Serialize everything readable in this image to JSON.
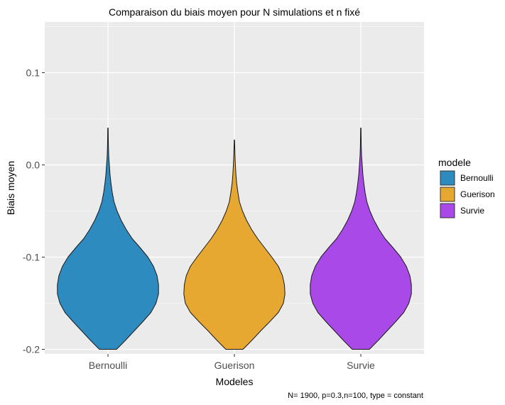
{
  "chart_data": {
    "type": "violin",
    "title": "Comparaison du biais moyen pour N simulations et n fixé",
    "xlabel": "Modeles",
    "ylabel": "Biais moyen",
    "caption": "N= 1900, p=0.3,n=100, type = constant",
    "ylim": [
      -0.205,
      0.155
    ],
    "yticks": [
      {
        "value": 0.1,
        "label": "0.1"
      },
      {
        "value": 0.0,
        "label": "0.0"
      },
      {
        "value": -0.1,
        "label": "-0.1"
      },
      {
        "value": -0.2,
        "label": "-0.2"
      }
    ],
    "categories": [
      "Bernoulli",
      "Guerison",
      "Survie"
    ],
    "legend": {
      "title": "modele",
      "position": "right",
      "entries": [
        "Bernoulli",
        "Guerison",
        "Survie"
      ]
    },
    "series": [
      {
        "name": "Bernoulli",
        "color": "#2e8bc0",
        "min": -0.2,
        "max": 0.04,
        "profile": [
          [
            -0.2,
            0.17
          ],
          [
            -0.19,
            0.35
          ],
          [
            -0.18,
            0.52
          ],
          [
            -0.17,
            0.69
          ],
          [
            -0.16,
            0.85
          ],
          [
            -0.15,
            0.95
          ],
          [
            -0.14,
            1.0
          ],
          [
            -0.13,
            1.0
          ],
          [
            -0.12,
            0.97
          ],
          [
            -0.11,
            0.9
          ],
          [
            -0.1,
            0.79
          ],
          [
            -0.09,
            0.64
          ],
          [
            -0.08,
            0.48
          ],
          [
            -0.07,
            0.36
          ],
          [
            -0.06,
            0.26
          ],
          [
            -0.05,
            0.18
          ],
          [
            -0.04,
            0.12
          ],
          [
            -0.03,
            0.085
          ],
          [
            -0.02,
            0.06
          ],
          [
            -0.01,
            0.04
          ],
          [
            0.0,
            0.028
          ],
          [
            0.01,
            0.015
          ],
          [
            0.02,
            0.009
          ],
          [
            0.03,
            0.006
          ],
          [
            0.04,
            0.004
          ]
        ]
      },
      {
        "name": "Guerison",
        "color": "#e6a830",
        "min": -0.2,
        "max": 0.027,
        "profile": [
          [
            -0.2,
            0.17
          ],
          [
            -0.19,
            0.35
          ],
          [
            -0.18,
            0.52
          ],
          [
            -0.17,
            0.7
          ],
          [
            -0.16,
            0.87
          ],
          [
            -0.15,
            0.97
          ],
          [
            -0.14,
            1.0
          ],
          [
            -0.13,
            0.99
          ],
          [
            -0.12,
            0.95
          ],
          [
            -0.11,
            0.87
          ],
          [
            -0.1,
            0.74
          ],
          [
            -0.09,
            0.6
          ],
          [
            -0.08,
            0.46
          ],
          [
            -0.07,
            0.34
          ],
          [
            -0.06,
            0.24
          ],
          [
            -0.05,
            0.16
          ],
          [
            -0.04,
            0.1
          ],
          [
            -0.03,
            0.07
          ],
          [
            -0.02,
            0.045
          ],
          [
            -0.01,
            0.03
          ],
          [
            0.0,
            0.02
          ],
          [
            0.01,
            0.012
          ],
          [
            0.02,
            0.007
          ],
          [
            0.027,
            0.004
          ]
        ]
      },
      {
        "name": "Survie",
        "color": "#a94ae8",
        "min": -0.2,
        "max": 0.04,
        "profile": [
          [
            -0.2,
            0.17
          ],
          [
            -0.19,
            0.35
          ],
          [
            -0.18,
            0.52
          ],
          [
            -0.17,
            0.69
          ],
          [
            -0.16,
            0.85
          ],
          [
            -0.15,
            0.95
          ],
          [
            -0.14,
            1.0
          ],
          [
            -0.13,
            1.0
          ],
          [
            -0.12,
            0.97
          ],
          [
            -0.11,
            0.9
          ],
          [
            -0.1,
            0.79
          ],
          [
            -0.09,
            0.64
          ],
          [
            -0.08,
            0.48
          ],
          [
            -0.07,
            0.36
          ],
          [
            -0.06,
            0.26
          ],
          [
            -0.05,
            0.18
          ],
          [
            -0.04,
            0.12
          ],
          [
            -0.03,
            0.085
          ],
          [
            -0.02,
            0.06
          ],
          [
            -0.01,
            0.04
          ],
          [
            0.0,
            0.028
          ],
          [
            0.01,
            0.015
          ],
          [
            0.02,
            0.009
          ],
          [
            0.03,
            0.006
          ],
          [
            0.04,
            0.004
          ]
        ]
      }
    ]
  }
}
